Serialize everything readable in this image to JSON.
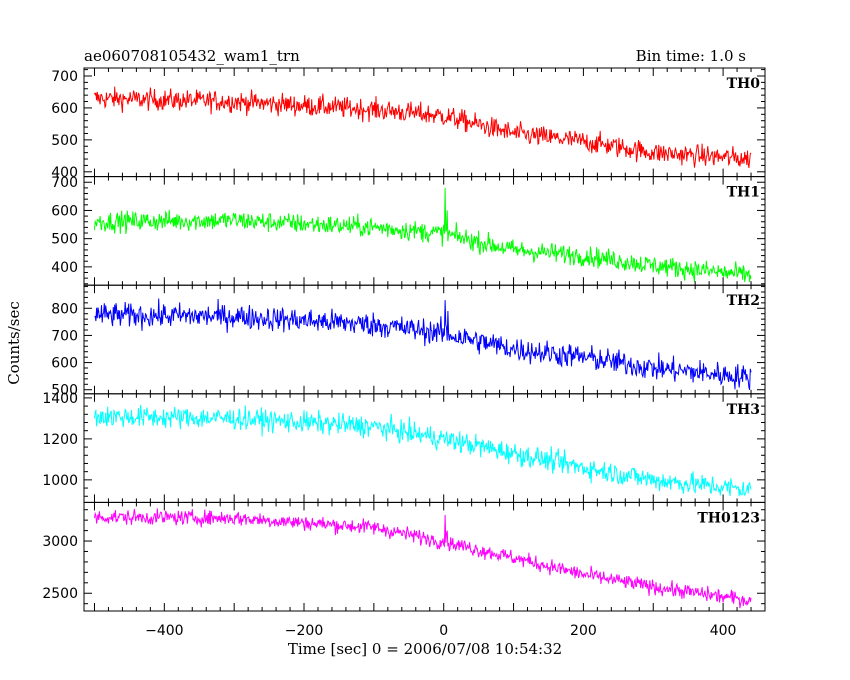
{
  "header": {
    "left_title": "ae060708105432_wam1_trn",
    "right_title": "Bin time: 1.0 s"
  },
  "axes": {
    "xlabel": "Time [sec] 0 = 2006/07/08 10:54:32",
    "ylabel": "Counts/sec",
    "xlim": [
      -515,
      460
    ],
    "xticks": [
      -400,
      -200,
      0,
      200,
      400
    ],
    "xtick_labels": [
      "−400",
      "−200",
      "0",
      "200",
      "400"
    ]
  },
  "chart_data": {
    "type": "line",
    "x_start": -500,
    "x_end": 440,
    "bin_time_s": 1.0,
    "grid": false,
    "series": [
      {
        "name": "TH0",
        "color": "#ff0000",
        "ylim": [
          385,
          725
        ],
        "yticks": [
          400,
          500,
          600,
          700
        ],
        "trend": [
          [
            -500,
            630
          ],
          [
            -300,
            620
          ],
          [
            -100,
            595
          ],
          [
            0,
            575
          ],
          [
            100,
            520
          ],
          [
            200,
            495
          ],
          [
            300,
            460
          ],
          [
            440,
            440
          ]
        ],
        "noise": 28,
        "spikes": []
      },
      {
        "name": "TH1",
        "color": "#00ff00",
        "ylim": [
          335,
          720
        ],
        "yticks": [
          400,
          500,
          600,
          700
        ],
        "trend": [
          [
            -500,
            560
          ],
          [
            -300,
            565
          ],
          [
            -100,
            540
          ],
          [
            -5,
            520
          ],
          [
            100,
            460
          ],
          [
            200,
            440
          ],
          [
            300,
            405
          ],
          [
            440,
            370
          ]
        ],
        "noise": 30,
        "spikes": [
          [
            2,
            680
          ],
          [
            5,
            600
          ]
        ]
      },
      {
        "name": "TH2",
        "color": "#0000ff",
        "ylim": [
          485,
          885
        ],
        "yticks": [
          500,
          600,
          700,
          800
        ],
        "trend": [
          [
            -500,
            775
          ],
          [
            -300,
            770
          ],
          [
            -100,
            740
          ],
          [
            -5,
            710
          ],
          [
            100,
            650
          ],
          [
            200,
            620
          ],
          [
            300,
            580
          ],
          [
            440,
            545
          ]
        ],
        "noise": 38,
        "spikes": [
          [
            2,
            830
          ],
          [
            6,
            790
          ]
        ]
      },
      {
        "name": "TH3",
        "color": "#00ffff",
        "ylim": [
          890,
          1420
        ],
        "yticks": [
          1000,
          1200,
          1400
        ],
        "trend": [
          [
            -500,
            1310
          ],
          [
            -300,
            1300
          ],
          [
            -100,
            1260
          ],
          [
            0,
            1200
          ],
          [
            100,
            1130
          ],
          [
            200,
            1060
          ],
          [
            300,
            1000
          ],
          [
            440,
            950
          ]
        ],
        "noise": 45,
        "spikes": []
      },
      {
        "name": "TH0123",
        "color": "#ff00ff",
        "ylim": [
          2330,
          3370
        ],
        "yticks": [
          2500,
          3000
        ],
        "trend": [
          [
            -500,
            3230
          ],
          [
            -300,
            3220
          ],
          [
            -100,
            3130
          ],
          [
            -5,
            3000
          ],
          [
            100,
            2840
          ],
          [
            200,
            2680
          ],
          [
            300,
            2560
          ],
          [
            440,
            2430
          ]
        ],
        "noise": 60,
        "spikes": [
          [
            2,
            3250
          ],
          [
            5,
            3100
          ]
        ]
      }
    ]
  }
}
